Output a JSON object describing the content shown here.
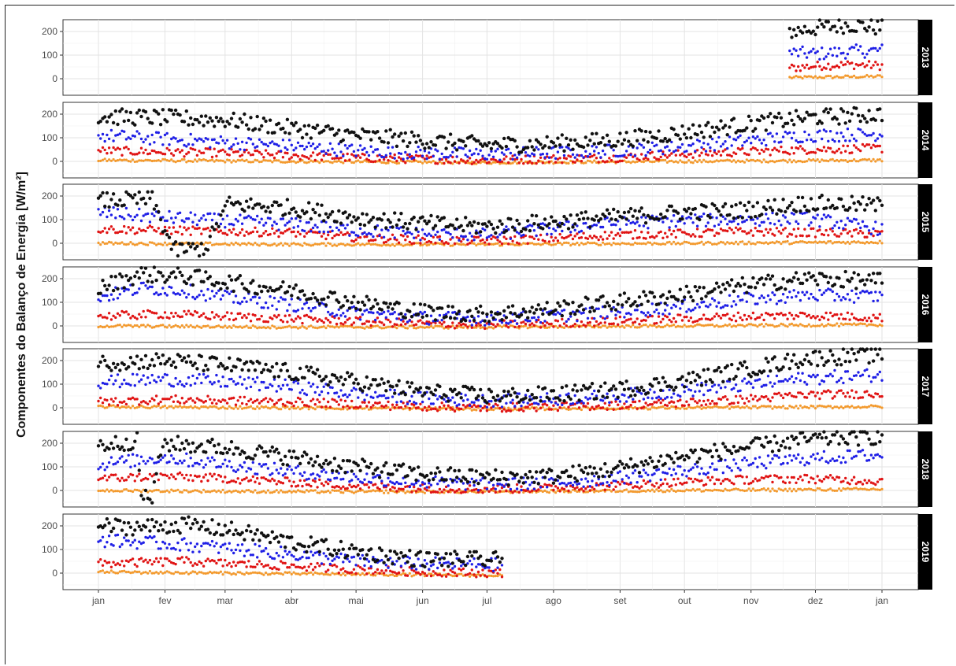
{
  "chart_data": {
    "type": "scatter",
    "title": "",
    "xlabel": "",
    "ylabel": "Componentes do Balanço de Energia [W/m²]",
    "x_ticks": [
      "jan",
      "fev",
      "mar",
      "abr",
      "mai",
      "jun",
      "jul",
      "ago",
      "set",
      "out",
      "nov",
      "dez",
      "jan"
    ],
    "y_ticks": [
      0,
      100,
      200
    ],
    "ylim": [
      -70,
      250
    ],
    "grid": true,
    "legend": "none",
    "colors": {
      "black": "#111111",
      "blue": "#1f1fe6",
      "red": "#e01414",
      "orange": "#f39a2e"
    },
    "panels": [
      {
        "label": "2013",
        "start_day": 322,
        "end_day": 365,
        "black": [
          [
            322,
            200
          ],
          [
            335,
            215
          ],
          [
            350,
            230
          ],
          [
            365,
            215
          ]
        ],
        "blue": [
          [
            322,
            110
          ],
          [
            335,
            105
          ],
          [
            350,
            115
          ],
          [
            365,
            120
          ]
        ],
        "red": [
          [
            322,
            45
          ],
          [
            335,
            55
          ],
          [
            350,
            60
          ],
          [
            365,
            55
          ]
        ],
        "orange": [
          [
            322,
            5
          ],
          [
            365,
            10
          ]
        ]
      },
      {
        "label": "2014",
        "start_day": 0,
        "end_day": 365,
        "black": [
          [
            0,
            190
          ],
          [
            30,
            185
          ],
          [
            60,
            175
          ],
          [
            90,
            140
          ],
          [
            120,
            110
          ],
          [
            150,
            90
          ],
          [
            180,
            70
          ],
          [
            210,
            75
          ],
          [
            240,
            90
          ],
          [
            270,
            120
          ],
          [
            300,
            155
          ],
          [
            330,
            185
          ],
          [
            365,
            200
          ]
        ],
        "blue": [
          [
            0,
            110
          ],
          [
            30,
            95
          ],
          [
            60,
            80
          ],
          [
            90,
            65
          ],
          [
            120,
            45
          ],
          [
            150,
            35
          ],
          [
            180,
            30
          ],
          [
            210,
            35
          ],
          [
            240,
            45
          ],
          [
            270,
            60
          ],
          [
            300,
            85
          ],
          [
            330,
            110
          ],
          [
            365,
            115
          ]
        ],
        "red": [
          [
            0,
            45
          ],
          [
            30,
            40
          ],
          [
            60,
            35
          ],
          [
            90,
            25
          ],
          [
            120,
            15
          ],
          [
            150,
            10
          ],
          [
            180,
            5
          ],
          [
            210,
            10
          ],
          [
            240,
            15
          ],
          [
            270,
            30
          ],
          [
            300,
            40
          ],
          [
            330,
            50
          ],
          [
            365,
            55
          ]
        ],
        "orange": [
          [
            0,
            5
          ],
          [
            90,
            0
          ],
          [
            180,
            -5
          ],
          [
            270,
            0
          ],
          [
            365,
            5
          ]
        ]
      },
      {
        "label": "2015",
        "start_day": 0,
        "end_day": 365,
        "black": [
          [
            0,
            180
          ],
          [
            25,
            185
          ],
          [
            35,
            -30
          ],
          [
            50,
            -20
          ],
          [
            60,
            165
          ],
          [
            90,
            150
          ],
          [
            120,
            110
          ],
          [
            150,
            85
          ],
          [
            180,
            70
          ],
          [
            210,
            90
          ],
          [
            240,
            110
          ],
          [
            270,
            130
          ],
          [
            300,
            140
          ],
          [
            330,
            170
          ],
          [
            365,
            160
          ]
        ],
        "blue": [
          [
            0,
            130
          ],
          [
            30,
            110
          ],
          [
            60,
            95
          ],
          [
            90,
            80
          ],
          [
            120,
            55
          ],
          [
            150,
            40
          ],
          [
            180,
            35
          ],
          [
            210,
            60
          ],
          [
            240,
            85
          ],
          [
            270,
            95
          ],
          [
            300,
            100
          ],
          [
            330,
            105
          ],
          [
            365,
            60
          ]
        ],
        "red": [
          [
            0,
            60
          ],
          [
            30,
            55
          ],
          [
            60,
            50
          ],
          [
            90,
            45
          ],
          [
            120,
            25
          ],
          [
            150,
            15
          ],
          [
            180,
            10
          ],
          [
            210,
            20
          ],
          [
            240,
            35
          ],
          [
            270,
            40
          ],
          [
            300,
            50
          ],
          [
            330,
            45
          ],
          [
            365,
            40
          ]
        ],
        "orange": [
          [
            0,
            0
          ],
          [
            90,
            -5
          ],
          [
            180,
            -5
          ],
          [
            270,
            0
          ],
          [
            365,
            5
          ]
        ]
      },
      {
        "label": "2016",
        "start_day": 0,
        "end_day": 365,
        "black": [
          [
            0,
            160
          ],
          [
            20,
            220
          ],
          [
            40,
            210
          ],
          [
            60,
            185
          ],
          [
            90,
            150
          ],
          [
            120,
            100
          ],
          [
            150,
            60
          ],
          [
            180,
            50
          ],
          [
            210,
            70
          ],
          [
            240,
            100
          ],
          [
            270,
            130
          ],
          [
            300,
            170
          ],
          [
            330,
            200
          ],
          [
            365,
            190
          ]
        ],
        "blue": [
          [
            0,
            120
          ],
          [
            20,
            160
          ],
          [
            40,
            150
          ],
          [
            60,
            120
          ],
          [
            90,
            90
          ],
          [
            120,
            55
          ],
          [
            150,
            35
          ],
          [
            180,
            30
          ],
          [
            210,
            40
          ],
          [
            240,
            60
          ],
          [
            270,
            80
          ],
          [
            300,
            110
          ],
          [
            330,
            130
          ],
          [
            365,
            125
          ]
        ],
        "red": [
          [
            0,
            40
          ],
          [
            30,
            50
          ],
          [
            60,
            40
          ],
          [
            90,
            30
          ],
          [
            120,
            20
          ],
          [
            150,
            10
          ],
          [
            180,
            5
          ],
          [
            210,
            10
          ],
          [
            240,
            20
          ],
          [
            270,
            30
          ],
          [
            300,
            40
          ],
          [
            330,
            45
          ],
          [
            365,
            35
          ]
        ],
        "orange": [
          [
            0,
            0
          ],
          [
            90,
            -5
          ],
          [
            180,
            -5
          ],
          [
            270,
            0
          ],
          [
            365,
            5
          ]
        ]
      },
      {
        "label": "2017",
        "start_day": 0,
        "end_day": 365,
        "black": [
          [
            0,
            190
          ],
          [
            30,
            200
          ],
          [
            60,
            180
          ],
          [
            90,
            150
          ],
          [
            120,
            110
          ],
          [
            150,
            70
          ],
          [
            180,
            50
          ],
          [
            210,
            55
          ],
          [
            240,
            75
          ],
          [
            270,
            110
          ],
          [
            300,
            160
          ],
          [
            330,
            210
          ],
          [
            365,
            225
          ]
        ],
        "blue": [
          [
            0,
            110
          ],
          [
            30,
            120
          ],
          [
            60,
            110
          ],
          [
            90,
            90
          ],
          [
            120,
            60
          ],
          [
            150,
            40
          ],
          [
            180,
            30
          ],
          [
            210,
            35
          ],
          [
            240,
            50
          ],
          [
            270,
            70
          ],
          [
            300,
            95
          ],
          [
            330,
            125
          ],
          [
            365,
            140
          ]
        ],
        "red": [
          [
            0,
            25
          ],
          [
            30,
            35
          ],
          [
            60,
            30
          ],
          [
            90,
            25
          ],
          [
            120,
            15
          ],
          [
            150,
            5
          ],
          [
            180,
            0
          ],
          [
            210,
            5
          ],
          [
            240,
            10
          ],
          [
            270,
            20
          ],
          [
            300,
            35
          ],
          [
            330,
            55
          ],
          [
            365,
            60
          ]
        ],
        "orange": [
          [
            0,
            5
          ],
          [
            90,
            0
          ],
          [
            180,
            -5
          ],
          [
            270,
            0
          ],
          [
            365,
            5
          ]
        ]
      },
      {
        "label": "2018",
        "start_day": 0,
        "end_day": 365,
        "black": [
          [
            0,
            190
          ],
          [
            18,
            210
          ],
          [
            20,
            -25
          ],
          [
            25,
            -30
          ],
          [
            30,
            200
          ],
          [
            60,
            180
          ],
          [
            90,
            140
          ],
          [
            120,
            100
          ],
          [
            150,
            70
          ],
          [
            180,
            55
          ],
          [
            210,
            60
          ],
          [
            240,
            90
          ],
          [
            270,
            140
          ],
          [
            300,
            180
          ],
          [
            330,
            215
          ],
          [
            365,
            230
          ]
        ],
        "blue": [
          [
            0,
            110
          ],
          [
            30,
            140
          ],
          [
            60,
            110
          ],
          [
            90,
            80
          ],
          [
            120,
            55
          ],
          [
            150,
            35
          ],
          [
            180,
            25
          ],
          [
            210,
            30
          ],
          [
            240,
            50
          ],
          [
            270,
            80
          ],
          [
            300,
            110
          ],
          [
            330,
            135
          ],
          [
            365,
            150
          ]
        ],
        "red": [
          [
            0,
            50
          ],
          [
            30,
            60
          ],
          [
            60,
            50
          ],
          [
            90,
            35
          ],
          [
            120,
            20
          ],
          [
            150,
            10
          ],
          [
            180,
            5
          ],
          [
            210,
            10
          ],
          [
            240,
            20
          ],
          [
            270,
            35
          ],
          [
            300,
            45
          ],
          [
            330,
            50
          ],
          [
            365,
            40
          ]
        ],
        "orange": [
          [
            0,
            0
          ],
          [
            90,
            -5
          ],
          [
            180,
            -5
          ],
          [
            270,
            0
          ],
          [
            365,
            5
          ]
        ]
      },
      {
        "label": "2019",
        "start_day": 0,
        "end_day": 188,
        "black": [
          [
            0,
            200
          ],
          [
            20,
            195
          ],
          [
            40,
            205
          ],
          [
            60,
            185
          ],
          [
            90,
            130
          ],
          [
            120,
            90
          ],
          [
            150,
            60
          ],
          [
            188,
            55
          ]
        ],
        "blue": [
          [
            0,
            140
          ],
          [
            20,
            130
          ],
          [
            40,
            120
          ],
          [
            60,
            105
          ],
          [
            90,
            80
          ],
          [
            120,
            50
          ],
          [
            150,
            40
          ],
          [
            188,
            35
          ]
        ],
        "red": [
          [
            0,
            40
          ],
          [
            20,
            45
          ],
          [
            40,
            50
          ],
          [
            60,
            40
          ],
          [
            90,
            30
          ],
          [
            120,
            15
          ],
          [
            150,
            5
          ],
          [
            188,
            0
          ]
        ],
        "orange": [
          [
            0,
            5
          ],
          [
            60,
            0
          ],
          [
            120,
            -5
          ],
          [
            188,
            -10
          ]
        ]
      }
    ]
  }
}
